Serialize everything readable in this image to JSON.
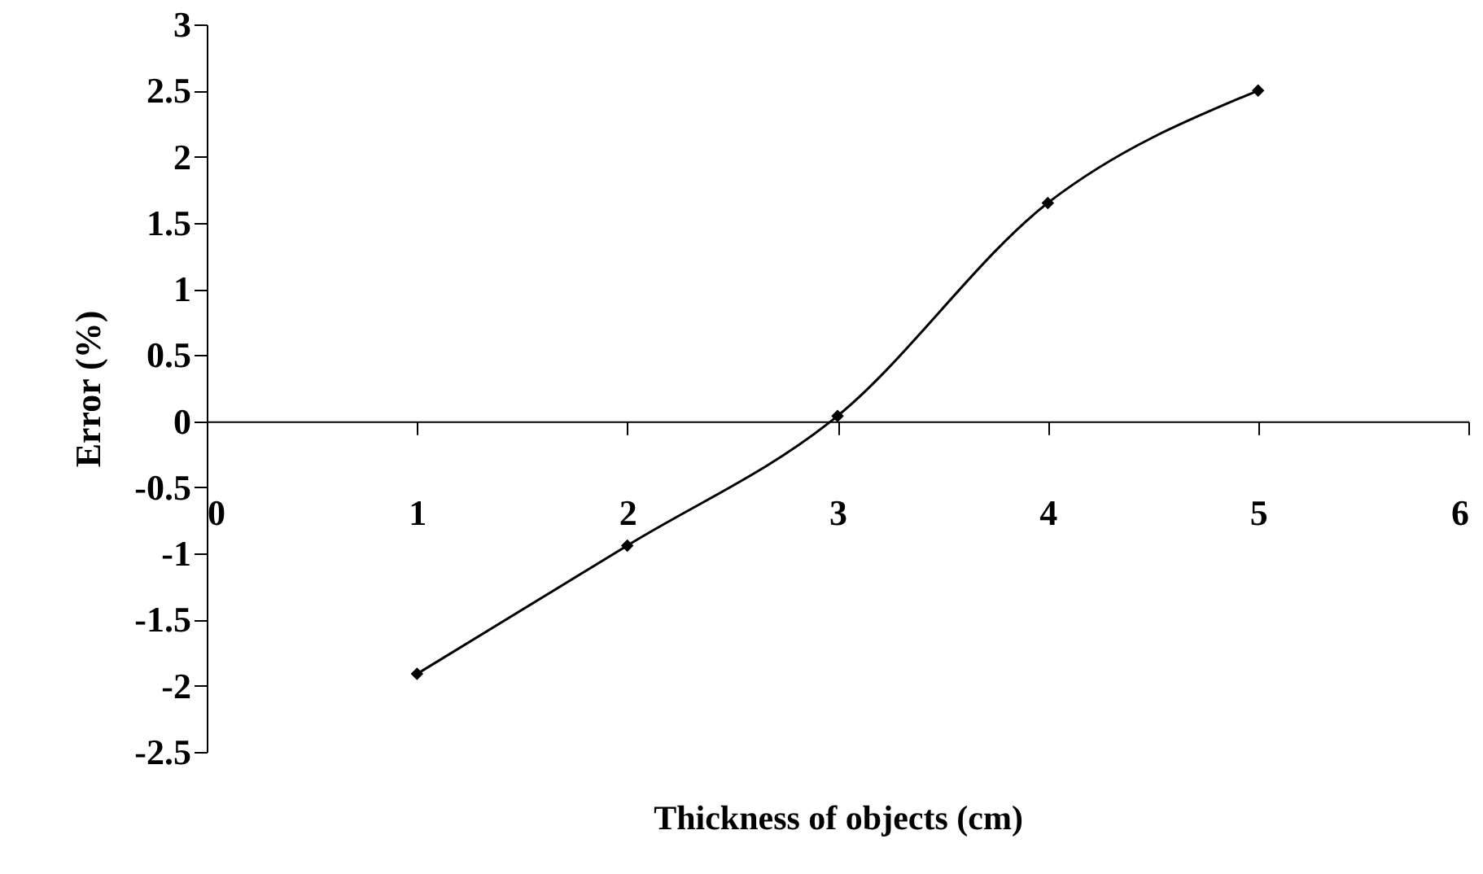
{
  "chart_data": {
    "type": "line",
    "xlabel": "Thickness  of objects (cm)",
    "ylabel": "Error (%)",
    "x": [
      1,
      2,
      3,
      4,
      5
    ],
    "series": [
      {
        "color": "#000000",
        "values": [
          -1.91,
          -0.94,
          0.04,
          1.65,
          2.5
        ]
      }
    ],
    "xlim": [
      0,
      6
    ],
    "xticks": [
      0,
      1,
      2,
      3,
      4,
      5,
      6
    ],
    "ylim": [
      -2.5,
      3
    ],
    "yticks": [
      -2.5,
      -2,
      -1.5,
      -1,
      -0.5,
      0,
      0.5,
      1,
      1.5,
      2,
      2.5,
      3
    ],
    "grid": false,
    "marker": "diamond",
    "line_style": "solid"
  }
}
